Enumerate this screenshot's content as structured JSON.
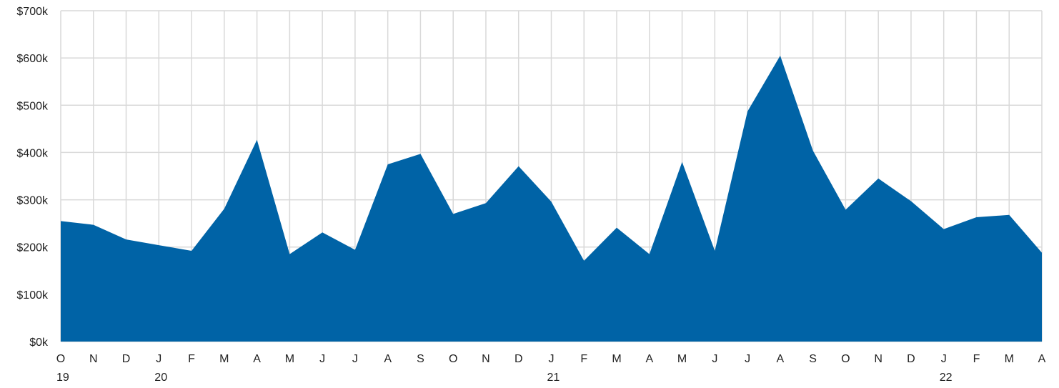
{
  "colors": {
    "area": "#0063a6",
    "grid": "#d9d9d9",
    "text": "#222222",
    "background": "#ffffff"
  },
  "chart_data": {
    "type": "area",
    "title": "",
    "xlabel": "",
    "ylabel": "",
    "ylim": [
      0,
      700000
    ],
    "y_ticks": [
      {
        "value": 0,
        "label": "$0k"
      },
      {
        "value": 100000,
        "label": "$100k"
      },
      {
        "value": 200000,
        "label": "$200k"
      },
      {
        "value": 300000,
        "label": "$300k"
      },
      {
        "value": 400000,
        "label": "$400k"
      },
      {
        "value": 500000,
        "label": "$500k"
      },
      {
        "value": 600000,
        "label": "$600k"
      },
      {
        "value": 700000,
        "label": "$700k"
      }
    ],
    "grid": true,
    "legend": "none",
    "categories": [
      "O",
      "N",
      "D",
      "J",
      "F",
      "M",
      "A",
      "M",
      "J",
      "J",
      "A",
      "S",
      "O",
      "N",
      "D",
      "J",
      "F",
      "M",
      "A",
      "M",
      "J",
      "J",
      "A",
      "S",
      "O",
      "N",
      "D",
      "J",
      "F",
      "M",
      "A"
    ],
    "dates": [
      "2019-10",
      "2019-11",
      "2019-12",
      "2020-01",
      "2020-02",
      "2020-03",
      "2020-04",
      "2020-05",
      "2020-06",
      "2020-07",
      "2020-08",
      "2020-09",
      "2020-10",
      "2020-11",
      "2020-12",
      "2021-01",
      "2021-02",
      "2021-03",
      "2021-04",
      "2021-05",
      "2021-06",
      "2021-07",
      "2021-08",
      "2021-09",
      "2021-10",
      "2021-11",
      "2021-12",
      "2022-01",
      "2022-02",
      "2022-03",
      "2022-04"
    ],
    "year_labels": [
      {
        "index": 0,
        "label": "19"
      },
      {
        "index": 3,
        "label": "20"
      },
      {
        "index": 15,
        "label": "21"
      },
      {
        "index": 27,
        "label": "22"
      }
    ],
    "series": [
      {
        "values": [
          255000,
          247000,
          216000,
          204000,
          192000,
          281000,
          427000,
          185000,
          231000,
          194000,
          375000,
          397000,
          270000,
          293000,
          371000,
          296000,
          171000,
          241000,
          185000,
          380000,
          192000,
          487000,
          605000,
          404000,
          279000,
          345000,
          297000,
          238000,
          263000,
          268000,
          188000
        ]
      }
    ]
  }
}
